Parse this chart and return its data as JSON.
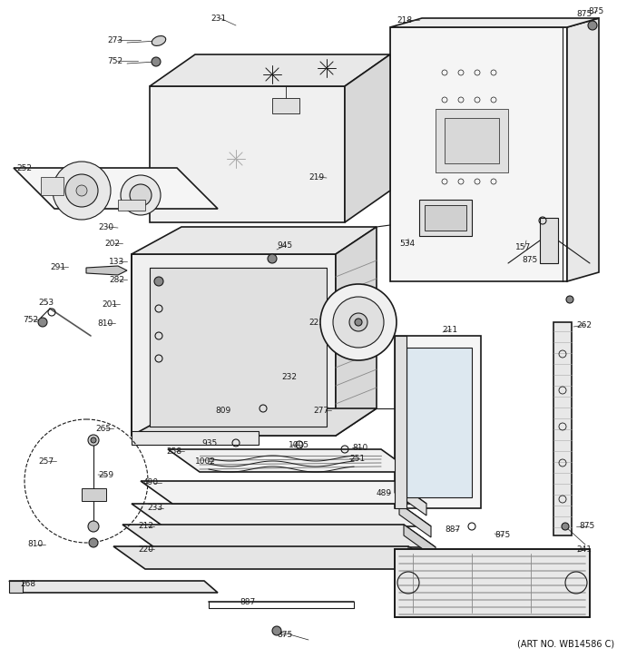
{
  "art_no": "(ART NO. WB14586 C)",
  "bg_color": "#ffffff",
  "line_color": "#1a1a1a",
  "fig_width": 6.8,
  "fig_height": 7.25,
  "dpi": 100
}
